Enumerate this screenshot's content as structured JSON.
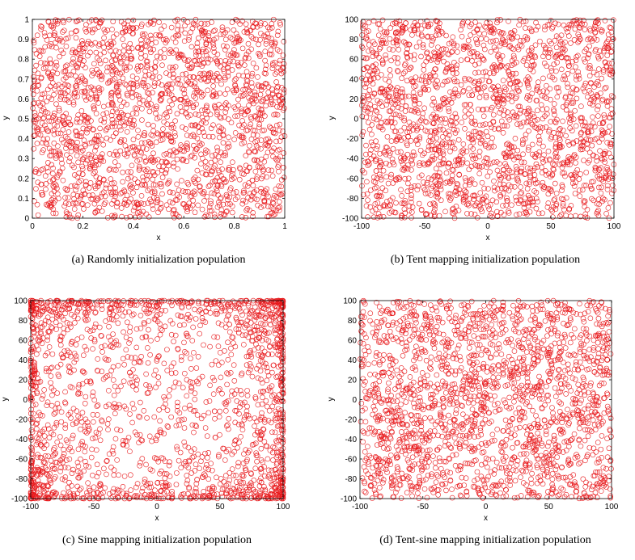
{
  "chart_data": [
    {
      "type": "scatter",
      "caption": "(a)  Randomly initialization population",
      "xlabel": "x",
      "ylabel": "y",
      "xlim": [
        0,
        1
      ],
      "ylim": [
        0,
        1
      ],
      "xticks": [
        0,
        0.2,
        0.4,
        0.6,
        0.8,
        1
      ],
      "xtick_labels": [
        "0",
        "0.2",
        "0.4",
        "0.6",
        "0.8",
        "1"
      ],
      "yticks": [
        0,
        0.1,
        0.2,
        0.3,
        0.4,
        0.5,
        0.6,
        0.7,
        0.8,
        0.9,
        1
      ],
      "ytick_labels": [
        "0",
        "0.1",
        "0.2",
        "0.3",
        "0.4",
        "0.5",
        "0.6",
        "0.7",
        "0.8",
        "0.9",
        "1"
      ],
      "marker": "open-circle",
      "color": "#e8191c",
      "distribution": "uniform random",
      "point_count": 2000,
      "grid": false
    },
    {
      "type": "scatter",
      "caption": "(b)  Tent mapping initialization population",
      "xlabel": "x",
      "ylabel": "y",
      "xlim": [
        -100,
        100
      ],
      "ylim": [
        -100,
        100
      ],
      "xticks": [
        -100,
        -50,
        0,
        50,
        100
      ],
      "xtick_labels": [
        "-100",
        "-50",
        "0",
        "50",
        "100"
      ],
      "yticks": [
        -100,
        -80,
        -60,
        -40,
        -20,
        0,
        20,
        40,
        60,
        80,
        100
      ],
      "ytick_labels": [
        "-100",
        "-80",
        "-60",
        "-40",
        "-20",
        "0",
        "20",
        "40",
        "60",
        "80",
        "100"
      ],
      "marker": "open-circle",
      "color": "#e8191c",
      "distribution": "tent map",
      "point_count": 2000,
      "grid": false
    },
    {
      "type": "scatter",
      "caption": "(c)  Sine mapping initialization population",
      "xlabel": "x",
      "ylabel": "y",
      "xlim": [
        -100,
        100
      ],
      "ylim": [
        -100,
        100
      ],
      "xticks": [
        -100,
        -50,
        0,
        50,
        100
      ],
      "xtick_labels": [
        "-100",
        "-50",
        "0",
        "50",
        "100"
      ],
      "yticks": [
        -100,
        -80,
        -60,
        -40,
        -20,
        0,
        20,
        40,
        60,
        80,
        100
      ],
      "ytick_labels": [
        "-100",
        "-80",
        "-60",
        "-40",
        "-20",
        "0",
        "20",
        "40",
        "60",
        "80",
        "100"
      ],
      "marker": "open-circle",
      "color": "#e8191c",
      "distribution": "sine map (clustered at edges)",
      "point_count": 2000,
      "grid": false
    },
    {
      "type": "scatter",
      "caption": "(d)  Tent-sine mapping initialization population",
      "xlabel": "x",
      "ylabel": "y",
      "xlim": [
        -100,
        100
      ],
      "ylim": [
        -100,
        100
      ],
      "xticks": [
        -100,
        -50,
        0,
        50,
        100
      ],
      "xtick_labels": [
        "-100",
        "-50",
        "0",
        "50",
        "100"
      ],
      "yticks": [
        -100,
        -80,
        -60,
        -40,
        -20,
        0,
        20,
        40,
        60,
        80,
        100
      ],
      "ytick_labels": [
        "-100",
        "-80",
        "-60",
        "-40",
        "-20",
        "0",
        "20",
        "40",
        "60",
        "80",
        "100"
      ],
      "marker": "open-circle",
      "color": "#e8191c",
      "distribution": "tent-sine map (uniform)",
      "point_count": 2000,
      "grid": false
    }
  ]
}
